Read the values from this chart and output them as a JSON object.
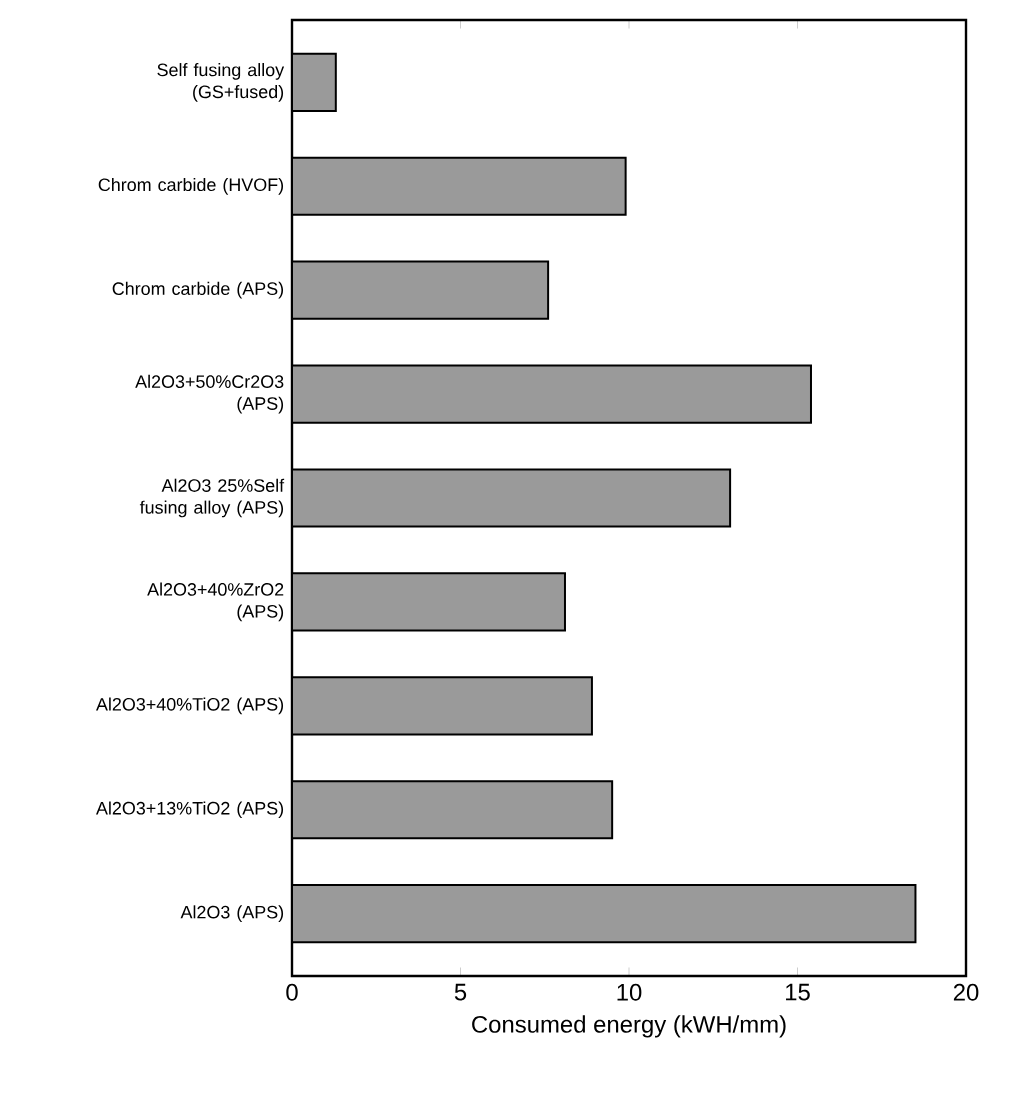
{
  "chart_data": {
    "type": "bar",
    "orientation": "horizontal",
    "categories": [
      "Self fusing alloy (GS+fused)",
      "Chrom carbide (HVOF)",
      "Chrom carbide (APS)",
      "Al2O3+50%Cr2O3 (APS)",
      "Al2O3 25%Self fusing alloy (APS)",
      "Al2O3+40%ZrO2 (APS)",
      "Al2O3+40%TiO2 (APS)",
      "Al2O3+13%TiO2 (APS)",
      "Al2O3 (APS)"
    ],
    "values": [
      1.3,
      9.9,
      7.6,
      15.4,
      13.0,
      8.1,
      8.9,
      9.5,
      18.5
    ],
    "color": "#9a9a9a",
    "xlim": [
      0,
      20
    ],
    "xticks": [
      0,
      5,
      10,
      15,
      20
    ],
    "xlabel": "Consumed energy  (kWH/mm)"
  }
}
